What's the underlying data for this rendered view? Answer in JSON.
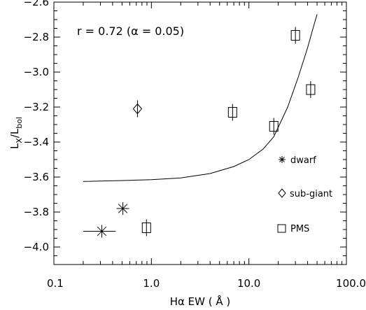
{
  "chart_data": {
    "type": "scatter",
    "x_scale": "log",
    "xlim": [
      0.1,
      100.0
    ],
    "ylim": [
      -4.1,
      -2.6
    ],
    "grid": false,
    "xlabel": "Hα EW ( Å )",
    "ylabel_main": "L",
    "ylabel_sub1": "X",
    "ylabel_sep": "/L",
    "ylabel_sub2": "bol",
    "annotation": "r = 0.72 (α = 0.05)",
    "x_ticks": [
      0.1,
      1.0,
      10.0,
      100.0
    ],
    "x_tick_labels": [
      "0.1",
      "1.0",
      "10.0",
      "100.0"
    ],
    "y_ticks": [
      -4.0,
      -3.8,
      -3.6,
      -3.4,
      -3.2,
      -3.0,
      -2.8,
      -2.6
    ],
    "y_tick_labels": [
      "−4.0",
      "−3.8",
      "−3.6",
      "−3.4",
      "−3.2",
      "−3.0",
      "−2.8",
      "−2.6"
    ],
    "series": [
      {
        "name": "dwarf",
        "marker": "asterisk",
        "points": [
          {
            "x": 0.31,
            "y": -3.91,
            "xerr": [
              0.2,
              0.43
            ]
          },
          {
            "x": 0.51,
            "y": -3.78,
            "xerr": null
          }
        ]
      },
      {
        "name": "sub-giant",
        "marker": "diamond",
        "points": [
          {
            "x": 0.72,
            "y": -3.21,
            "xerr": null
          }
        ]
      },
      {
        "name": "PMS",
        "marker": "square",
        "points": [
          {
            "x": 0.89,
            "y": -3.89,
            "xerr": null
          },
          {
            "x": 6.8,
            "y": -3.23,
            "xerr": null
          },
          {
            "x": 18.0,
            "y": -3.31,
            "xerr": null
          },
          {
            "x": 30.0,
            "y": -2.79,
            "xerr": null
          },
          {
            "x": 43.0,
            "y": -3.1,
            "xerr": null
          }
        ]
      }
    ],
    "fit_curve": {
      "x": [
        0.2,
        0.5,
        1.0,
        2.0,
        4.0,
        7.0,
        10.0,
        14.0,
        18.0,
        25.0,
        32.0,
        40.0,
        46.0,
        50.0
      ],
      "y": [
        -3.625,
        -3.62,
        -3.615,
        -3.605,
        -3.58,
        -3.54,
        -3.5,
        -3.44,
        -3.37,
        -3.2,
        -3.03,
        -2.86,
        -2.74,
        -2.67
      ]
    },
    "legend_position": "bottom-right"
  }
}
